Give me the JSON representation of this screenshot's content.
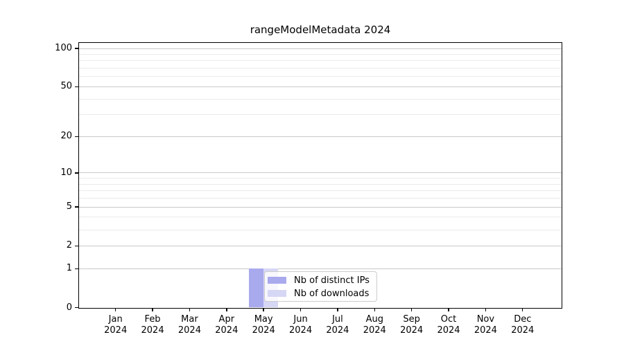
{
  "chart_data": {
    "type": "bar",
    "title": "rangeModelMetadata 2024",
    "y_scale": "log1p",
    "categories": [
      "Jan",
      "Feb",
      "Mar",
      "Apr",
      "May",
      "Jun",
      "Jul",
      "Aug",
      "Sep",
      "Oct",
      "Nov",
      "Dec"
    ],
    "x_tick_year": "2024",
    "series": [
      {
        "name": "Nb of distinct IPs",
        "color": "#a9a9ee",
        "values": [
          0,
          0,
          0,
          0,
          1,
          0,
          0,
          0,
          0,
          0,
          0,
          0
        ]
      },
      {
        "name": "Nb of downloads",
        "color": "#d6d6f5",
        "values": [
          0,
          0,
          0,
          0,
          1,
          0,
          0,
          0,
          0,
          0,
          0,
          0
        ]
      }
    ],
    "y_major_ticks": [
      0,
      1,
      2,
      5,
      10,
      20,
      50,
      100
    ],
    "y_minor_gridlines": [
      3,
      4,
      6,
      7,
      8,
      9,
      30,
      40,
      60,
      70,
      80,
      90
    ],
    "ylim": [
      0,
      111
    ],
    "grid": true,
    "legend_position": "lower-center"
  },
  "colors": {
    "grid_major": "#c9c9c9",
    "grid_minor": "#ebebeb",
    "axis": "#000000",
    "background": "#ffffff",
    "legend_border": "#cccccc"
  }
}
